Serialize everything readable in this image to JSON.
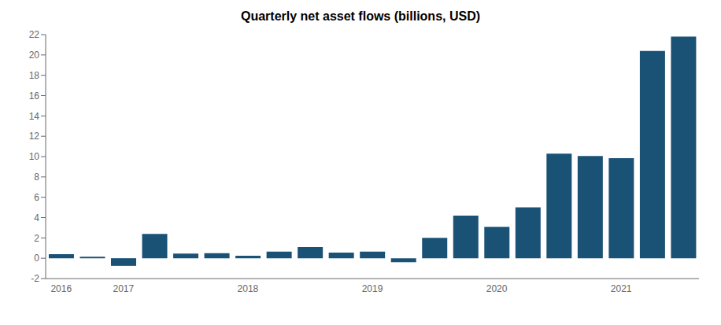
{
  "chart_data": {
    "type": "bar",
    "title": "Quarterly net asset flows (billions, USD)",
    "categories": [
      "2016",
      null,
      "2017",
      null,
      null,
      null,
      "2018",
      null,
      null,
      null,
      "2019",
      null,
      null,
      null,
      "2020",
      null,
      null,
      null,
      "2021",
      null,
      null
    ],
    "values": [
      0.4,
      0.15,
      -0.75,
      2.4,
      0.45,
      0.5,
      0.25,
      0.65,
      1.1,
      0.55,
      0.65,
      -0.4,
      2.0,
      4.2,
      3.1,
      5.0,
      10.3,
      10.05,
      9.85,
      20.4,
      21.8
    ],
    "color": "#1a5276",
    "ylim": [
      -2,
      22
    ],
    "yticks": [
      -2,
      0,
      2,
      4,
      6,
      8,
      10,
      12,
      14,
      16,
      18,
      20,
      22
    ],
    "grid": false
  }
}
